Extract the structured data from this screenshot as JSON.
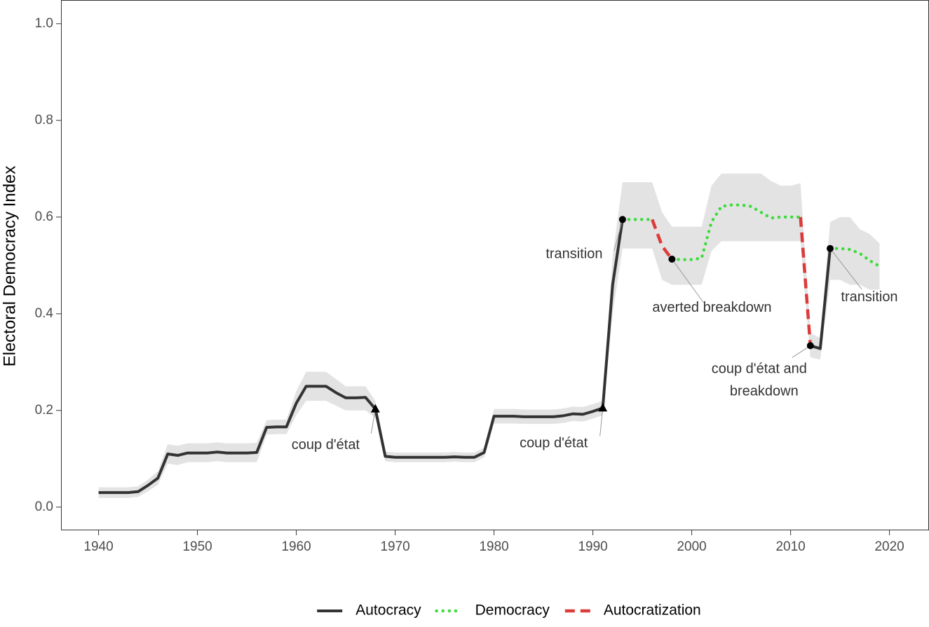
{
  "chart_data": {
    "type": "line",
    "y_label": "Electoral Democracy Index",
    "xlim": [
      1936.2,
      2024
    ],
    "ylim": [
      -0.048,
      1.049
    ],
    "xticks": [
      1940,
      1950,
      1960,
      1970,
      1980,
      1990,
      2000,
      2010,
      2020
    ],
    "yticks": [
      {
        "value": 0,
        "label": "0.0"
      },
      0.2,
      0.4,
      0.6,
      0.8,
      {
        "value": 1,
        "label": "1.0"
      }
    ],
    "grid": false,
    "legend": "bottom",
    "x": [
      1940,
      1941,
      1942,
      1943,
      1944,
      1945,
      1946,
      1947,
      1948,
      1949,
      1950,
      1951,
      1952,
      1953,
      1954,
      1955,
      1956,
      1957,
      1958,
      1959,
      1960,
      1961,
      1962,
      1963,
      1964,
      1965,
      1966,
      1967,
      1968,
      1969,
      1970,
      1971,
      1972,
      1973,
      1974,
      1975,
      1976,
      1977,
      1978,
      1979,
      1980,
      1981,
      1982,
      1983,
      1984,
      1985,
      1986,
      1987,
      1988,
      1989,
      1990,
      1991,
      1992,
      1993,
      1994,
      1995,
      1996,
      1997,
      1998,
      1999,
      2000,
      2001,
      2002,
      2003,
      2004,
      2005,
      2006,
      2007,
      2008,
      2009,
      2010,
      2011,
      2012,
      2013,
      2014,
      2015,
      2016,
      2017,
      2018,
      2019
    ],
    "band": {
      "color": "#e3e3e3",
      "lower": [
        0.019,
        0.019,
        0.019,
        0.019,
        0.021,
        0.033,
        0.046,
        0.09,
        0.087,
        0.093,
        0.093,
        0.093,
        0.095,
        0.093,
        0.093,
        0.093,
        0.093,
        0.15,
        0.151,
        0.151,
        0.19,
        0.22,
        0.22,
        0.22,
        0.21,
        0.2,
        0.2,
        0.2,
        0.185,
        0.095,
        0.093,
        0.093,
        0.093,
        0.093,
        0.093,
        0.093,
        0.094,
        0.093,
        0.093,
        0.103,
        0.173,
        0.173,
        0.173,
        0.172,
        0.172,
        0.172,
        0.172,
        0.174,
        0.178,
        0.177,
        0.183,
        0.19,
        0.4,
        0.535,
        0.535,
        0.535,
        0.535,
        0.47,
        0.46,
        0.46,
        0.46,
        0.46,
        0.53,
        0.55,
        0.55,
        0.55,
        0.55,
        0.55,
        0.55,
        0.55,
        0.55,
        0.55,
        0.31,
        0.305,
        0.47,
        0.47,
        0.46,
        0.46,
        0.45,
        0.45
      ],
      "upper": [
        0.041,
        0.041,
        0.041,
        0.041,
        0.043,
        0.057,
        0.074,
        0.13,
        0.127,
        0.132,
        0.132,
        0.132,
        0.134,
        0.132,
        0.132,
        0.132,
        0.133,
        0.18,
        0.181,
        0.181,
        0.24,
        0.28,
        0.28,
        0.28,
        0.265,
        0.25,
        0.25,
        0.25,
        0.22,
        0.115,
        0.113,
        0.113,
        0.113,
        0.113,
        0.113,
        0.113,
        0.114,
        0.113,
        0.113,
        0.123,
        0.203,
        0.203,
        0.203,
        0.202,
        0.202,
        0.202,
        0.202,
        0.204,
        0.208,
        0.207,
        0.213,
        0.22,
        0.52,
        0.672,
        0.672,
        0.672,
        0.672,
        0.61,
        0.58,
        0.58,
        0.58,
        0.58,
        0.665,
        0.69,
        0.69,
        0.69,
        0.69,
        0.69,
        0.675,
        0.665,
        0.665,
        0.67,
        0.36,
        0.35,
        0.59,
        0.6,
        0.6,
        0.575,
        0.565,
        0.545
      ]
    },
    "series": [
      {
        "name": "Autocracy",
        "color": "#333333",
        "linestyle": "solid",
        "values": [
          0.03,
          0.03,
          0.03,
          0.03,
          0.032,
          0.045,
          0.06,
          0.11,
          0.107,
          0.112,
          0.112,
          0.112,
          0.114,
          0.112,
          0.112,
          0.112,
          0.113,
          0.165,
          0.166,
          0.166,
          0.215,
          0.25,
          0.25,
          0.25,
          0.237,
          0.226,
          0.226,
          0.227,
          0.203,
          0.105,
          0.103,
          0.103,
          0.103,
          0.103,
          0.103,
          0.103,
          0.104,
          0.103,
          0.103,
          0.113,
          0.188,
          0.188,
          0.188,
          0.187,
          0.187,
          0.187,
          0.187,
          0.189,
          0.193,
          0.192,
          0.198,
          0.205,
          0.46,
          0.595,
          null,
          null,
          null,
          null,
          null,
          null,
          null,
          null,
          null,
          null,
          null,
          null,
          null,
          null,
          null,
          null,
          null,
          null,
          0.334,
          0.328,
          0.535,
          null,
          null,
          null,
          null,
          null
        ]
      },
      {
        "name": "Democracy",
        "color": "#3ddc3d",
        "linestyle": "dotted",
        "values": [
          null,
          null,
          null,
          null,
          null,
          null,
          null,
          null,
          null,
          null,
          null,
          null,
          null,
          null,
          null,
          null,
          null,
          null,
          null,
          null,
          null,
          null,
          null,
          null,
          null,
          null,
          null,
          null,
          null,
          null,
          null,
          null,
          null,
          null,
          null,
          null,
          null,
          null,
          null,
          null,
          null,
          null,
          null,
          null,
          null,
          null,
          null,
          null,
          null,
          null,
          null,
          null,
          null,
          0.595,
          0.595,
          0.595,
          0.595,
          null,
          0.513,
          0.512,
          0.512,
          0.515,
          0.59,
          0.622,
          0.625,
          0.625,
          0.622,
          0.61,
          0.598,
          0.6,
          0.6,
          0.6,
          null,
          null,
          0.535,
          0.535,
          0.533,
          0.525,
          0.51,
          0.498
        ]
      },
      {
        "name": "Autocratization",
        "color": "#dd3a3a",
        "linestyle": "dashed",
        "values": [
          null,
          null,
          null,
          null,
          null,
          null,
          null,
          null,
          null,
          null,
          null,
          null,
          null,
          null,
          null,
          null,
          null,
          null,
          null,
          null,
          null,
          null,
          null,
          null,
          null,
          null,
          null,
          null,
          null,
          null,
          null,
          null,
          null,
          null,
          null,
          null,
          null,
          null,
          null,
          null,
          null,
          null,
          null,
          null,
          null,
          null,
          null,
          null,
          null,
          null,
          null,
          null,
          null,
          null,
          null,
          null,
          0.595,
          0.54,
          0.513,
          null,
          null,
          null,
          null,
          null,
          null,
          null,
          null,
          null,
          null,
          null,
          null,
          0.6,
          0.334,
          null,
          null,
          null,
          null,
          null,
          null,
          null
        ]
      }
    ],
    "annotations": [
      {
        "text": [
          "coup d'état"
        ],
        "x": 1968,
        "marker": "triangle"
      },
      {
        "text": [
          "coup d'état"
        ],
        "x": 1991,
        "marker": "triangle"
      },
      {
        "text": [
          "transition"
        ],
        "x": 1993,
        "marker": "circle"
      },
      {
        "text": [
          "averted breakdown"
        ],
        "x": 1998,
        "marker": "circle"
      },
      {
        "text": [
          "coup d'état and",
          "breakdown"
        ],
        "x": 2012,
        "marker": "circle"
      },
      {
        "text": [
          "transition"
        ],
        "x": 2014,
        "marker": "circle"
      }
    ]
  }
}
